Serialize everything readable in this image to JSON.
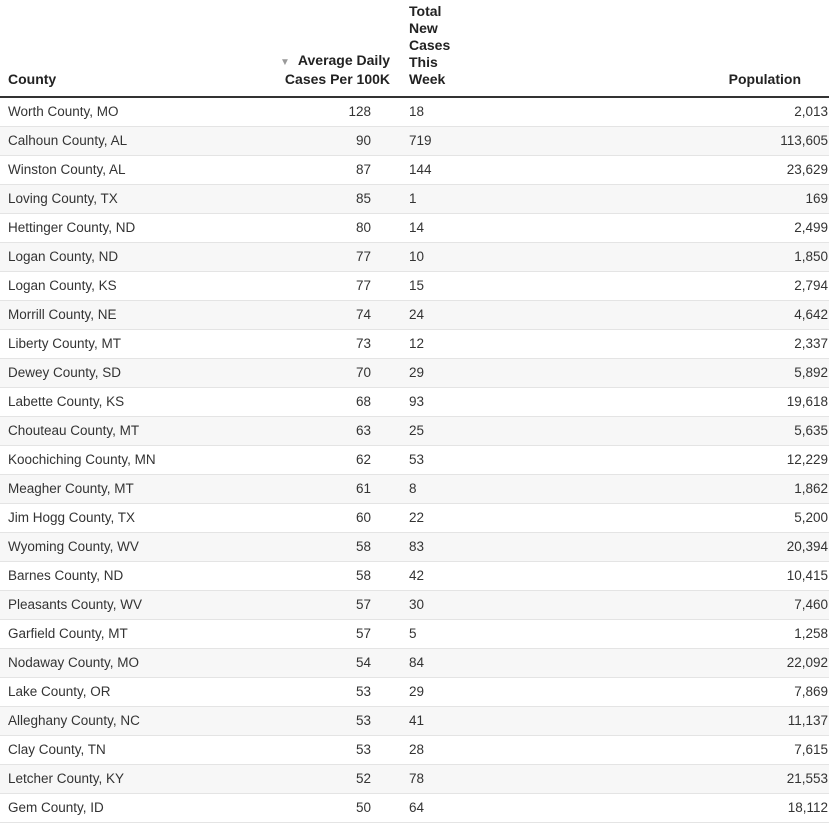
{
  "chart_data": {
    "type": "table",
    "columns": [
      "County",
      "Average Daily Cases Per 100K",
      "Total New Cases This Week",
      "Population"
    ],
    "sort": {
      "column": "Average Daily Cases Per 100K",
      "direction": "descending",
      "icon": "sort-down-icon"
    },
    "rows": [
      [
        "Worth County, MO",
        "128",
        "18",
        "2,013"
      ],
      [
        "Calhoun County, AL",
        "90",
        "719",
        "113,605"
      ],
      [
        "Winston County, AL",
        "87",
        "144",
        "23,629"
      ],
      [
        "Loving County, TX",
        "85",
        "1",
        "169"
      ],
      [
        "Hettinger County, ND",
        "80",
        "14",
        "2,499"
      ],
      [
        "Logan County, ND",
        "77",
        "10",
        "1,850"
      ],
      [
        "Logan County, KS",
        "77",
        "15",
        "2,794"
      ],
      [
        "Morrill County, NE",
        "74",
        "24",
        "4,642"
      ],
      [
        "Liberty County, MT",
        "73",
        "12",
        "2,337"
      ],
      [
        "Dewey County, SD",
        "70",
        "29",
        "5,892"
      ],
      [
        "Labette County, KS",
        "68",
        "93",
        "19,618"
      ],
      [
        "Chouteau County, MT",
        "63",
        "25",
        "5,635"
      ],
      [
        "Koochiching County, MN",
        "62",
        "53",
        "12,229"
      ],
      [
        "Meagher County, MT",
        "61",
        "8",
        "1,862"
      ],
      [
        "Jim Hogg County, TX",
        "60",
        "22",
        "5,200"
      ],
      [
        "Wyoming County, WV",
        "58",
        "83",
        "20,394"
      ],
      [
        "Barnes County, ND",
        "58",
        "42",
        "10,415"
      ],
      [
        "Pleasants County, WV",
        "57",
        "30",
        "7,460"
      ],
      [
        "Garfield County, MT",
        "57",
        "5",
        "1,258"
      ],
      [
        "Nodaway County, MO",
        "54",
        "84",
        "22,092"
      ],
      [
        "Lake County, OR",
        "53",
        "29",
        "7,869"
      ],
      [
        "Alleghany County, NC",
        "53",
        "41",
        "11,137"
      ],
      [
        "Clay County, TN",
        "53",
        "28",
        "7,615"
      ],
      [
        "Letcher County, KY",
        "52",
        "78",
        "21,553"
      ],
      [
        "Gem County, ID",
        "50",
        "64",
        "18,112"
      ]
    ]
  },
  "header": {
    "county": "County",
    "avg_line1": "Average Daily",
    "avg_line2": "Cases Per 100K",
    "total_line1": "Total New Cases This",
    "total_line2": "Week",
    "population": "Population",
    "sort_glyph": "▼"
  }
}
